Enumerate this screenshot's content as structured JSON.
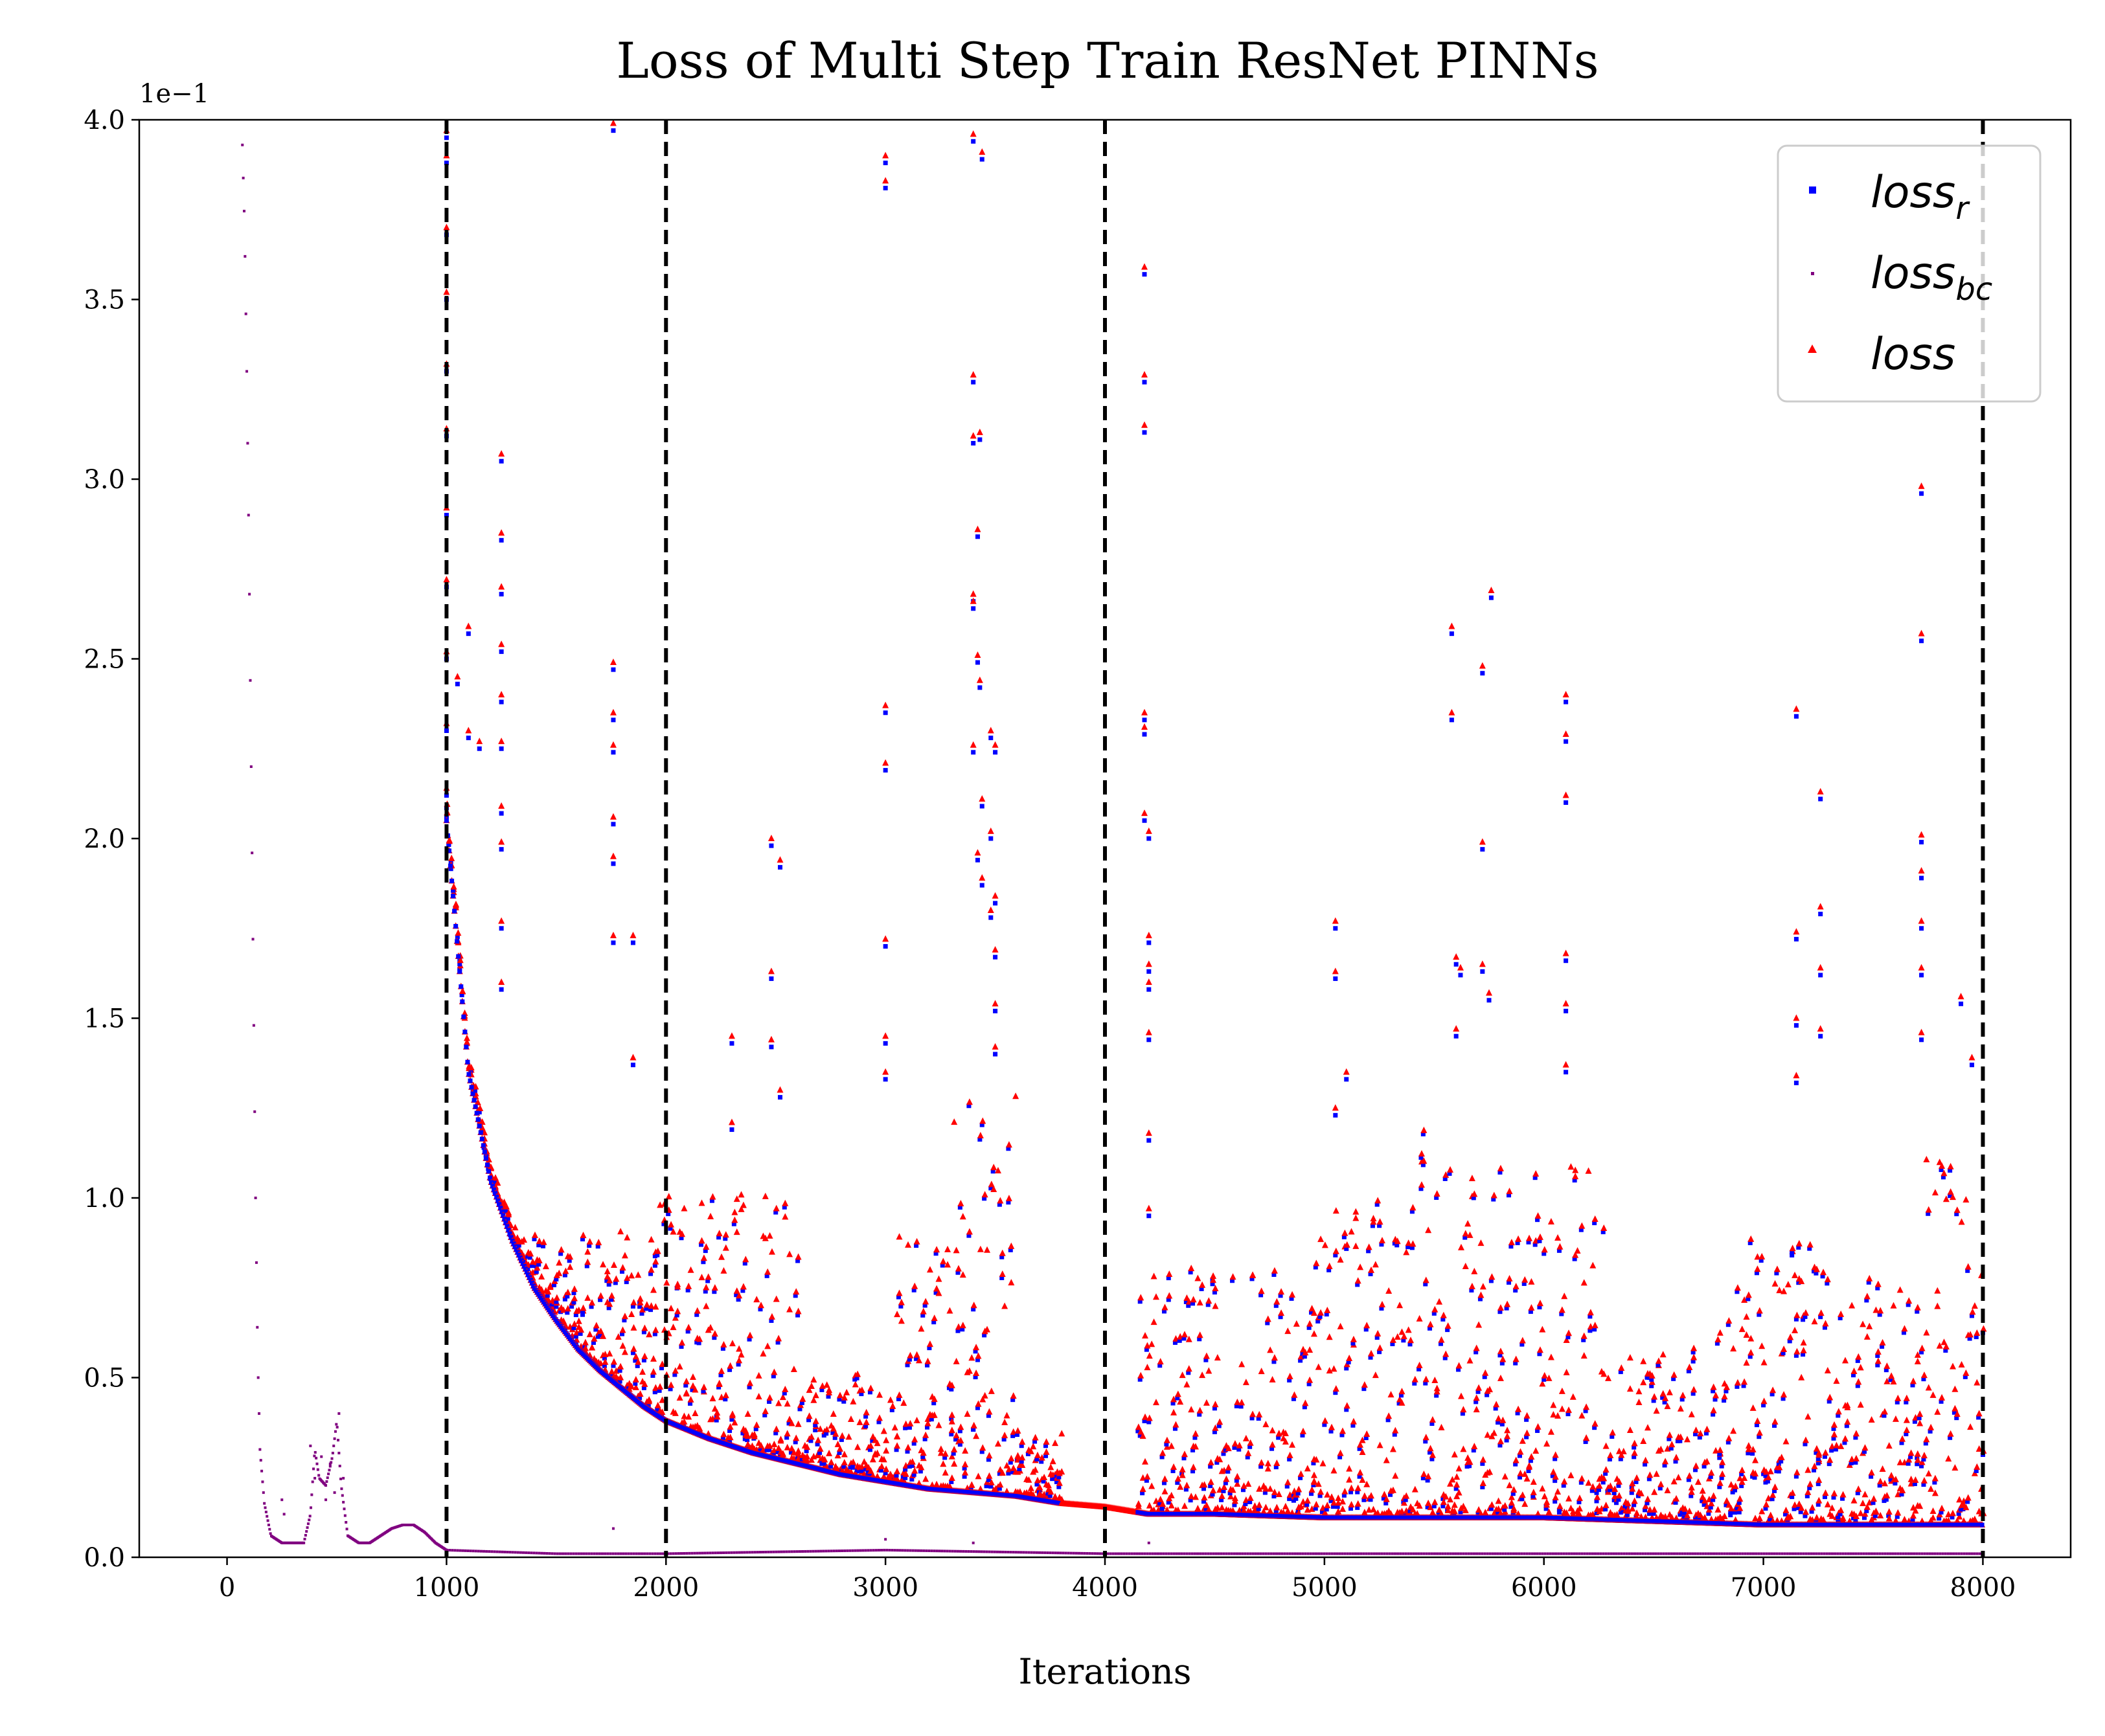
{
  "chart_data": {
    "type": "scatter",
    "title": "Loss of Multi Step Train ResNet PINNs",
    "xlabel": "Iterations",
    "ylabel": "",
    "y_offset_text": "1e−1",
    "xlim": [
      -400,
      8400
    ],
    "ylim": [
      0,
      0.4
    ],
    "x_ticks": [
      0,
      1000,
      2000,
      3000,
      4000,
      5000,
      6000,
      7000,
      8000
    ],
    "x_tick_labels": [
      "0",
      "1000",
      "2000",
      "3000",
      "4000",
      "5000",
      "6000",
      "7000",
      "8000"
    ],
    "y_ticks": [
      0,
      0.05,
      0.1,
      0.15,
      0.2,
      0.25,
      0.3,
      0.35,
      0.4
    ],
    "y_tick_labels": [
      "0.0",
      "0.5",
      "1.0",
      "1.5",
      "2.0",
      "2.5",
      "3.0",
      "3.5",
      "4.0"
    ],
    "vlines": [
      1000,
      2000,
      4000,
      8000
    ],
    "vline_style": "dashed",
    "grid": false,
    "legend_position": "top-right",
    "series": [
      {
        "name": "loss_r",
        "label_main": "loss",
        "label_sub": "r",
        "color": "#0000ff",
        "marker": "square",
        "baseline_points": [
          [
            1000,
            0.205
          ],
          [
            1100,
            0.135
          ],
          [
            1200,
            0.105
          ],
          [
            1300,
            0.088
          ],
          [
            1400,
            0.075
          ],
          [
            1500,
            0.066
          ],
          [
            1600,
            0.058
          ],
          [
            1700,
            0.052
          ],
          [
            1800,
            0.047
          ],
          [
            1900,
            0.042
          ],
          [
            2000,
            0.038
          ],
          [
            2200,
            0.033
          ],
          [
            2400,
            0.029
          ],
          [
            2600,
            0.026
          ],
          [
            2800,
            0.023
          ],
          [
            3000,
            0.021
          ],
          [
            3200,
            0.019
          ],
          [
            3400,
            0.018
          ],
          [
            3600,
            0.017
          ],
          [
            3800,
            0.015
          ],
          [
            4000,
            0.014
          ],
          [
            4200,
            0.012
          ],
          [
            4500,
            0.012
          ],
          [
            5000,
            0.011
          ],
          [
            5500,
            0.011
          ],
          [
            6000,
            0.011
          ],
          [
            6500,
            0.01
          ],
          [
            7000,
            0.009
          ],
          [
            7500,
            0.009
          ],
          [
            8000,
            0.009
          ]
        ],
        "spike_points": [
          [
            1000,
            0.395
          ],
          [
            1000,
            0.388
          ],
          [
            1000,
            0.368
          ],
          [
            1000,
            0.35
          ],
          [
            1000,
            0.33
          ],
          [
            1000,
            0.312
          ],
          [
            1000,
            0.29
          ],
          [
            1000,
            0.27
          ],
          [
            1000,
            0.25
          ],
          [
            1000,
            0.23
          ],
          [
            1000,
            0.212
          ],
          [
            1050,
            0.243
          ],
          [
            1100,
            0.257
          ],
          [
            1100,
            0.228
          ],
          [
            1150,
            0.225
          ],
          [
            1250,
            0.305
          ],
          [
            1250,
            0.283
          ],
          [
            1250,
            0.268
          ],
          [
            1250,
            0.252
          ],
          [
            1250,
            0.238
          ],
          [
            1250,
            0.225
          ],
          [
            1250,
            0.207
          ],
          [
            1250,
            0.197
          ],
          [
            1250,
            0.175
          ],
          [
            1250,
            0.158
          ],
          [
            1760,
            0.397
          ],
          [
            1760,
            0.247
          ],
          [
            1760,
            0.233
          ],
          [
            1760,
            0.224
          ],
          [
            1760,
            0.204
          ],
          [
            1760,
            0.193
          ],
          [
            1760,
            0.171
          ],
          [
            1850,
            0.171
          ],
          [
            1850,
            0.137
          ],
          [
            2300,
            0.143
          ],
          [
            2300,
            0.119
          ],
          [
            2480,
            0.198
          ],
          [
            2480,
            0.161
          ],
          [
            2480,
            0.142
          ],
          [
            2520,
            0.192
          ],
          [
            2520,
            0.128
          ],
          [
            3000,
            0.388
          ],
          [
            3000,
            0.381
          ],
          [
            3000,
            0.235
          ],
          [
            3000,
            0.219
          ],
          [
            3000,
            0.17
          ],
          [
            3000,
            0.143
          ],
          [
            3000,
            0.133
          ],
          [
            3400,
            0.394
          ],
          [
            3440,
            0.389
          ],
          [
            3400,
            0.327
          ],
          [
            3400,
            0.31
          ],
          [
            3430,
            0.311
          ],
          [
            3420,
            0.284
          ],
          [
            3400,
            0.266
          ],
          [
            3400,
            0.264
          ],
          [
            3420,
            0.249
          ],
          [
            3430,
            0.242
          ],
          [
            3400,
            0.224
          ],
          [
            3480,
            0.228
          ],
          [
            3500,
            0.224
          ],
          [
            3440,
            0.209
          ],
          [
            3480,
            0.2
          ],
          [
            3420,
            0.194
          ],
          [
            3440,
            0.187
          ],
          [
            3500,
            0.182
          ],
          [
            3480,
            0.178
          ],
          [
            3500,
            0.167
          ],
          [
            3500,
            0.152
          ],
          [
            3500,
            0.14
          ],
          [
            4180,
            0.357
          ],
          [
            4180,
            0.327
          ],
          [
            4180,
            0.313
          ],
          [
            4180,
            0.233
          ],
          [
            4180,
            0.229
          ],
          [
            4180,
            0.205
          ],
          [
            4200,
            0.2
          ],
          [
            4200,
            0.171
          ],
          [
            4200,
            0.163
          ],
          [
            4200,
            0.158
          ],
          [
            4200,
            0.144
          ],
          [
            4200,
            0.116
          ],
          [
            4200,
            0.095
          ],
          [
            5050,
            0.175
          ],
          [
            5050,
            0.161
          ],
          [
            5050,
            0.123
          ],
          [
            5100,
            0.133
          ],
          [
            5580,
            0.257
          ],
          [
            5580,
            0.233
          ],
          [
            5600,
            0.165
          ],
          [
            5620,
            0.162
          ],
          [
            5600,
            0.145
          ],
          [
            5720,
            0.246
          ],
          [
            5760,
            0.267
          ],
          [
            5720,
            0.197
          ],
          [
            5720,
            0.163
          ],
          [
            5750,
            0.155
          ],
          [
            6100,
            0.238
          ],
          [
            6100,
            0.227
          ],
          [
            6100,
            0.21
          ],
          [
            6100,
            0.166
          ],
          [
            6100,
            0.152
          ],
          [
            6100,
            0.135
          ],
          [
            7150,
            0.234
          ],
          [
            7150,
            0.172
          ],
          [
            7150,
            0.148
          ],
          [
            7150,
            0.132
          ],
          [
            7260,
            0.211
          ],
          [
            7260,
            0.179
          ],
          [
            7260,
            0.162
          ],
          [
            7260,
            0.145
          ],
          [
            7720,
            0.296
          ],
          [
            7720,
            0.255
          ],
          [
            7720,
            0.199
          ],
          [
            7720,
            0.189
          ],
          [
            7720,
            0.175
          ],
          [
            7720,
            0.162
          ],
          [
            7720,
            0.144
          ],
          [
            7900,
            0.154
          ],
          [
            7950,
            0.137
          ]
        ]
      },
      {
        "name": "loss_bc",
        "label_main": "loss",
        "label_sub": "bc",
        "color": "#800080",
        "marker": "point",
        "curve_points": [
          [
            70,
            0.393
          ],
          [
            80,
            0.37
          ],
          [
            90,
            0.33
          ],
          [
            100,
            0.28
          ],
          [
            110,
            0.22
          ],
          [
            120,
            0.16
          ],
          [
            130,
            0.1
          ],
          [
            140,
            0.055
          ],
          [
            150,
            0.03
          ],
          [
            170,
            0.015
          ],
          [
            200,
            0.006
          ],
          [
            250,
            0.004
          ],
          [
            300,
            0.004
          ],
          [
            350,
            0.004
          ],
          [
            380,
            0.012
          ],
          [
            400,
            0.03
          ],
          [
            420,
            0.022
          ],
          [
            450,
            0.02
          ],
          [
            480,
            0.028
          ],
          [
            500,
            0.038
          ],
          [
            520,
            0.02
          ],
          [
            550,
            0.006
          ],
          [
            600,
            0.004
          ],
          [
            650,
            0.004
          ],
          [
            700,
            0.006
          ],
          [
            750,
            0.008
          ],
          [
            800,
            0.009
          ],
          [
            850,
            0.009
          ],
          [
            900,
            0.007
          ],
          [
            950,
            0.004
          ],
          [
            1000,
            0.002
          ],
          [
            1500,
            0.001
          ],
          [
            2000,
            0.001
          ],
          [
            3000,
            0.002
          ],
          [
            4000,
            0.001
          ],
          [
            5000,
            0.001
          ],
          [
            6000,
            0.001
          ],
          [
            7000,
            0.001
          ],
          [
            8000,
            0.001
          ]
        ],
        "noise_points": [
          [
            250,
            0.016
          ],
          [
            260,
            0.012
          ],
          [
            380,
            0.031
          ],
          [
            400,
            0.022
          ],
          [
            430,
            0.028
          ],
          [
            450,
            0.016
          ],
          [
            470,
            0.026
          ],
          [
            490,
            0.018
          ],
          [
            510,
            0.04
          ],
          [
            530,
            0.022
          ],
          [
            1760,
            0.008
          ],
          [
            3000,
            0.005
          ],
          [
            3400,
            0.004
          ],
          [
            4200,
            0.004
          ]
        ]
      },
      {
        "name": "loss",
        "label_main": "loss",
        "label_sub": "",
        "color": "#ff0000",
        "marker": "triangle"
      }
    ],
    "band_segments": [
      {
        "x0": 1000,
        "x1": 1950,
        "low": 0.0,
        "high": 0.09
      },
      {
        "x0": 1950,
        "x1": 2600,
        "low": 0.0,
        "high": 0.1
      },
      {
        "x0": 2600,
        "x1": 3050,
        "low": 0.0,
        "high": 0.05
      },
      {
        "x0": 3050,
        "x1": 3300,
        "low": 0.0,
        "high": 0.09
      },
      {
        "x0": 3300,
        "x1": 3600,
        "low": 0.0,
        "high": 0.13
      },
      {
        "x0": 3600,
        "x1": 3800,
        "low": 0.0,
        "high": 0.035
      },
      {
        "x0": 4150,
        "x1": 4500,
        "low": 0.0,
        "high": 0.08
      },
      {
        "x0": 4500,
        "x1": 4950,
        "low": 0.0,
        "high": 0.08
      },
      {
        "x0": 4950,
        "x1": 5350,
        "low": 0.0,
        "high": 0.1
      },
      {
        "x0": 5350,
        "x1": 5800,
        "low": 0.0,
        "high": 0.12
      },
      {
        "x0": 5800,
        "x1": 6300,
        "low": 0.0,
        "high": 0.11
      },
      {
        "x0": 6300,
        "x1": 6800,
        "low": 0.0,
        "high": 0.06
      },
      {
        "x0": 6800,
        "x1": 7250,
        "low": 0.0,
        "high": 0.09
      },
      {
        "x0": 7250,
        "x1": 7700,
        "low": 0.0,
        "high": 0.08
      },
      {
        "x0": 7700,
        "x1": 8000,
        "low": 0.0,
        "high": 0.11
      }
    ]
  }
}
